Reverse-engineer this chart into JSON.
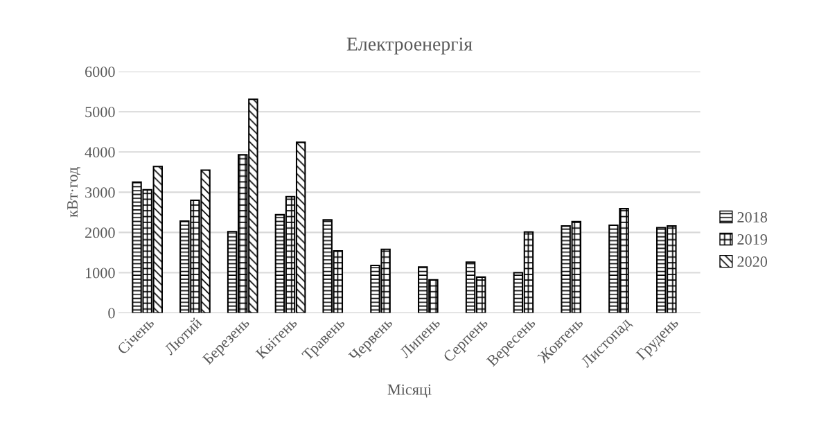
{
  "chart_data": {
    "type": "bar",
    "title": "Електроенергія",
    "xlabel": "Місяці",
    "ylabel": "кВт·год",
    "categories": [
      "Січень",
      "Лютий",
      "Березень",
      "Квітень",
      "Травень",
      "Червень",
      "Липень",
      "Серпень",
      "Вересень",
      "Жовтень",
      "Листопад",
      "Грудень"
    ],
    "series": [
      {
        "name": "2018",
        "color": "#000000",
        "values": [
          3250,
          2280,
          2020,
          2440,
          2310,
          1180,
          1140,
          1260,
          1000,
          2160,
          2180,
          2120
        ]
      },
      {
        "name": "2019",
        "color": "#000000",
        "values": [
          3060,
          2800,
          3930,
          2890,
          1540,
          1580,
          820,
          890,
          2010,
          2270,
          2590,
          2160
        ]
      },
      {
        "name": "2020",
        "color": "#000000",
        "values": [
          3640,
          3550,
          5310,
          4240,
          null,
          null,
          null,
          null,
          null,
          null,
          null,
          null
        ]
      }
    ],
    "ylim": [
      0,
      6000
    ],
    "yticks": [
      0,
      1000,
      2000,
      3000,
      4000,
      5000,
      6000
    ],
    "grid": "y",
    "legend": "right"
  }
}
